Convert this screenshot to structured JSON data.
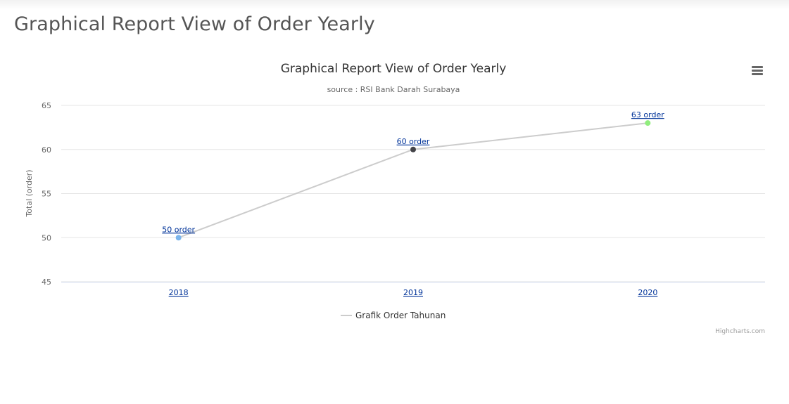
{
  "page": {
    "title": "Graphical Report View of Order Yearly"
  },
  "chart_data": {
    "type": "line",
    "title": "Graphical Report View of Order Yearly",
    "subtitle": "source : RSI Bank Darah Surabaya",
    "xlabel": "",
    "ylabel": "Total (order)",
    "categories": [
      "2018",
      "2019",
      "2020"
    ],
    "series": [
      {
        "name": "Grafik Order Tahunan",
        "values": [
          50,
          60,
          63
        ],
        "data_labels": [
          "50 order",
          "60 order",
          "63 order"
        ],
        "point_colors": [
          "#7cb5ec",
          "#434348",
          "#90ed7d"
        ],
        "line_color": "#cccccc"
      }
    ],
    "ylim": [
      45,
      65
    ],
    "yticks": [
      45,
      50,
      55,
      60,
      65
    ],
    "grid": true,
    "legend_position": "bottom-center",
    "credits": "Highcharts.com"
  },
  "colors": {
    "title": "#333333",
    "subtitle": "#666666",
    "axis_text": "#666666",
    "category_link": "#003399",
    "grid": "#e6e6e6"
  },
  "icons": {
    "menu": "hamburger-menu-icon"
  }
}
